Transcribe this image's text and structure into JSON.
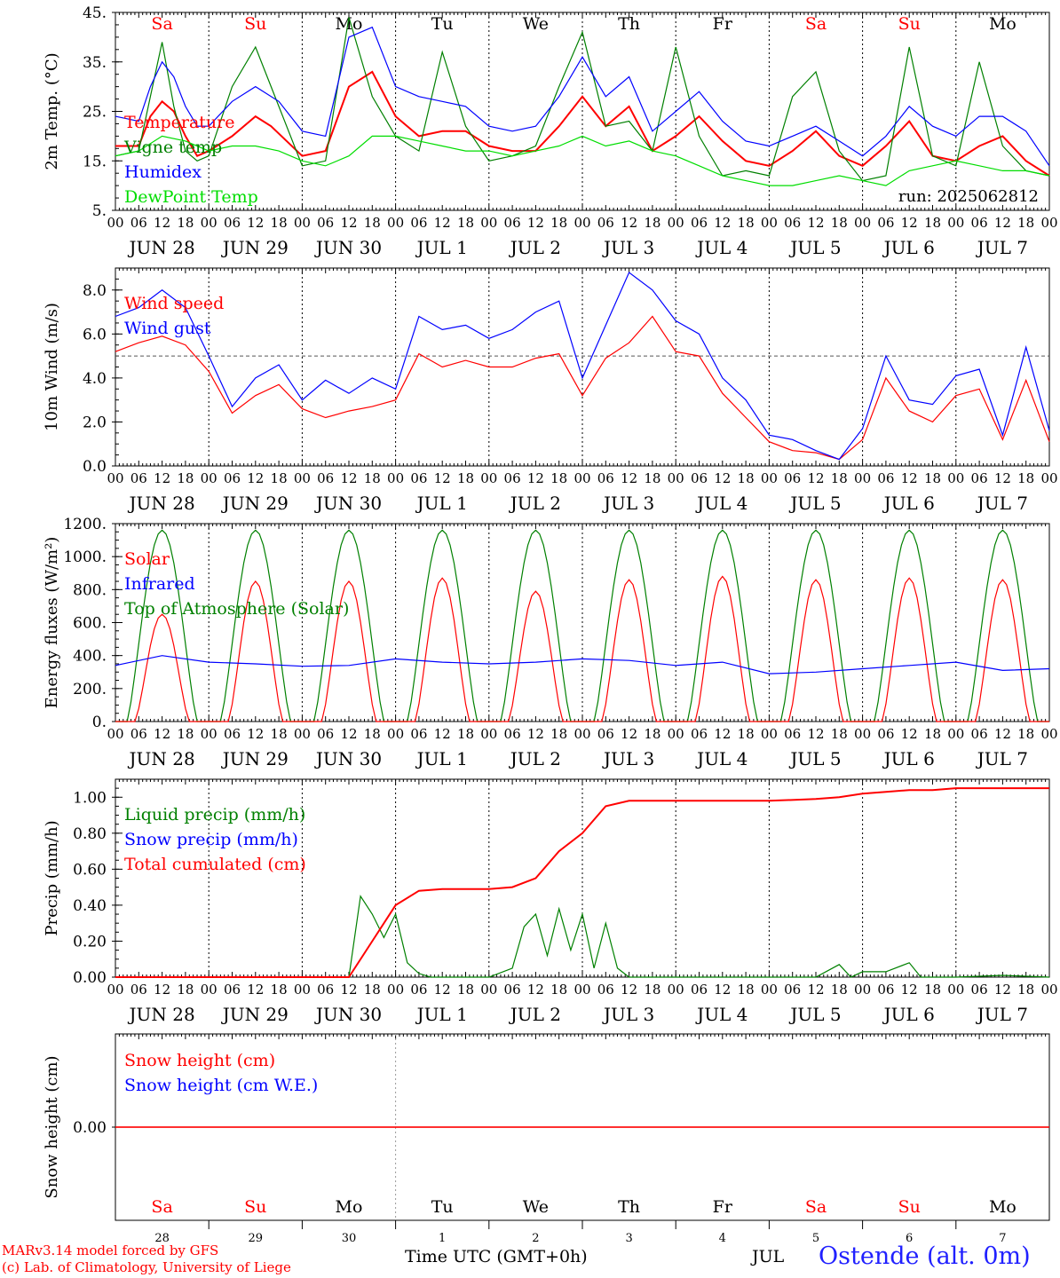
{
  "footer": {
    "credit1": "MARv3.14 model forced by GFS",
    "credit2": "(c) Lab. of Climatology, University of Liege",
    "xtitle": "Time UTC (GMT+0h)",
    "month": "JUL",
    "station": "Ostende (alt. 0m)"
  },
  "colors": {
    "red": "#ff0000",
    "green": "#008000",
    "blue": "#0000ff",
    "lightgreen": "#00dd00"
  },
  "chart_data": {
    "type": "line",
    "x_hours": {
      "start_hour": 0,
      "end_hour": 240,
      "step": 6
    },
    "hour_tick_labels": [
      "00",
      "06",
      "12",
      "18"
    ],
    "date_labels": [
      "JUN 28",
      "JUN 29",
      "JUN 30",
      "JUL  1",
      "JUL  2",
      "JUL  3",
      "JUL  4",
      "JUL  5",
      "JUL  6",
      "JUL  7"
    ],
    "weekdays": [
      "Sa",
      "Su",
      "Mo",
      "Tu",
      "We",
      "Th",
      "Fr",
      "Sa",
      "Su",
      "Mo"
    ],
    "weekend_flags": [
      true,
      true,
      false,
      false,
      false,
      false,
      false,
      true,
      true,
      false
    ],
    "bottom_day_numbers": [
      "28",
      "29",
      "30",
      "1",
      "2",
      "3",
      "4",
      "5",
      "6",
      "7"
    ],
    "panels": [
      {
        "id": "temp",
        "ylabel": "2m Temp. (°C)",
        "ylim": [
          5,
          45
        ],
        "yticks": [
          5,
          15,
          25,
          35,
          45
        ],
        "ytick_labels": [
          "5.",
          "15.",
          "25.",
          "35.",
          "45."
        ],
        "annotation": "run: 2025062812",
        "legend": [
          "Temperature",
          "Vigne temp",
          "Humidex",
          "DewPoint Temp"
        ],
        "series": [
          {
            "name": "Temperature",
            "color": "red",
            "x": [
              0,
              6,
              9,
              12,
              15,
              18,
              21,
              24,
              30,
              36,
              40,
              48,
              54,
              60,
              66,
              72,
              78,
              84,
              90,
              96,
              102,
              108,
              114,
              120,
              126,
              132,
              138,
              144,
              150,
              156,
              162,
              168,
              174,
              180,
              186,
              192,
              198,
              204,
              210,
              216,
              222,
              228,
              234,
              240
            ],
            "y": [
              18,
              18,
              24,
              27,
              25,
              20,
              16,
              17,
              20,
              24,
              22,
              16,
              17,
              30,
              33,
              24,
              20,
              21,
              21,
              18,
              17,
              17,
              22,
              28,
              22,
              26,
              17,
              20,
              24,
              19,
              15,
              14,
              17,
              21,
              16,
              14,
              18,
              23,
              16,
              15,
              18,
              20,
              15,
              12
            ]
          },
          {
            "name": "Vigne temp",
            "color": "green",
            "x": [
              0,
              6,
              9,
              12,
              15,
              18,
              21,
              24,
              30,
              36,
              42,
              48,
              54,
              60,
              66,
              72,
              78,
              84,
              90,
              96,
              102,
              108,
              114,
              120,
              126,
              132,
              138,
              144,
              150,
              156,
              162,
              168,
              174,
              180,
              186,
              192,
              198,
              204,
              210,
              216,
              222,
              228,
              234,
              240
            ],
            "y": [
              16,
              17,
              28,
              39,
              26,
              17,
              15,
              16,
              30,
              38,
              26,
              14,
              15,
              44,
              28,
              20,
              17,
              37,
              22,
              15,
              16,
              18,
              30,
              41,
              22,
              23,
              17,
              38,
              20,
              12,
              13,
              12,
              28,
              33,
              17,
              11,
              12,
              38,
              16,
              14,
              35,
              18,
              13,
              12
            ]
          },
          {
            "name": "Humidex",
            "color": "blue",
            "x": [
              0,
              6,
              9,
              12,
              15,
              18,
              21,
              24,
              30,
              36,
              42,
              48,
              54,
              60,
              66,
              72,
              78,
              84,
              90,
              96,
              102,
              108,
              114,
              120,
              126,
              132,
              138,
              144,
              150,
              156,
              162,
              168,
              174,
              180,
              186,
              192,
              198,
              204,
              210,
              216,
              222,
              228,
              234,
              240
            ],
            "y": [
              24,
              23,
              30,
              35,
              32,
              26,
              22,
              22,
              27,
              30,
              27,
              21,
              20,
              40,
              42,
              30,
              28,
              27,
              26,
              22,
              21,
              22,
              28,
              36,
              28,
              32,
              21,
              25,
              29,
              23,
              19,
              18,
              20,
              22,
              19,
              16,
              20,
              26,
              22,
              20,
              24,
              24,
              21,
              14
            ]
          },
          {
            "name": "DewPoint Temp",
            "color": "lightgreen",
            "x": [
              0,
              6,
              12,
              18,
              24,
              30,
              36,
              42,
              48,
              54,
              60,
              66,
              72,
              78,
              84,
              90,
              96,
              102,
              108,
              114,
              120,
              126,
              132,
              138,
              144,
              150,
              156,
              162,
              168,
              174,
              180,
              186,
              192,
              198,
              204,
              210,
              216,
              222,
              228,
              234,
              240
            ],
            "y": [
              16,
              17,
              20,
              19,
              17,
              18,
              18,
              17,
              15,
              14,
              16,
              20,
              20,
              19,
              18,
              17,
              17,
              16,
              17,
              18,
              20,
              18,
              19,
              17,
              16,
              14,
              12,
              11,
              10,
              10,
              11,
              12,
              11,
              10,
              13,
              14,
              15,
              14,
              13,
              13,
              12
            ]
          }
        ]
      },
      {
        "id": "wind",
        "ylabel": "10m Wind (m/s)",
        "ylim": [
          0,
          9
        ],
        "yticks": [
          0,
          2,
          4,
          6,
          8
        ],
        "ytick_labels": [
          "0.0",
          "2.0",
          "4.0",
          "6.0",
          "8.0"
        ],
        "hline": 5,
        "legend": [
          "Wind speed",
          "Wind gust"
        ],
        "series": [
          {
            "name": "Wind speed",
            "color": "red",
            "x": [
              0,
              6,
              12,
              18,
              24,
              30,
              36,
              42,
              48,
              54,
              60,
              66,
              72,
              78,
              84,
              90,
              96,
              102,
              108,
              114,
              120,
              126,
              132,
              138,
              144,
              150,
              156,
              162,
              168,
              174,
              180,
              186,
              192,
              198,
              204,
              210,
              216,
              222,
              228,
              234,
              240
            ],
            "y": [
              5.2,
              5.6,
              5.9,
              5.5,
              4.3,
              2.4,
              3.2,
              3.7,
              2.6,
              2.2,
              2.5,
              2.7,
              3,
              5.1,
              4.5,
              4.8,
              4.5,
              4.5,
              4.9,
              5.1,
              3.2,
              4.9,
              5.6,
              6.8,
              5.2,
              5,
              3.3,
              2.2,
              1.1,
              0.7,
              0.6,
              0.3,
              1.2,
              4,
              2.5,
              2,
              3.2,
              3.5,
              1.2,
              3.9,
              1.1
            ]
          },
          {
            "name": "Wind gust",
            "color": "blue",
            "x": [
              0,
              6,
              12,
              18,
              24,
              30,
              36,
              42,
              48,
              54,
              60,
              66,
              72,
              78,
              84,
              90,
              96,
              102,
              108,
              114,
              120,
              126,
              132,
              138,
              144,
              150,
              156,
              162,
              168,
              174,
              180,
              186,
              192,
              198,
              204,
              210,
              216,
              222,
              228,
              234,
              240
            ],
            "y": [
              6.8,
              7.2,
              8,
              7.2,
              5,
              2.7,
              4,
              4.6,
              3,
              3.9,
              3.3,
              4,
              3.5,
              6.8,
              6.2,
              6.4,
              5.8,
              6.2,
              7,
              7.5,
              4,
              6.4,
              8.8,
              8,
              6.6,
              6,
              4,
              3,
              1.4,
              1.2,
              0.7,
              0.3,
              1.7,
              5,
              3,
              2.8,
              4.1,
              4.4,
              1.4,
              5.4,
              1.6
            ]
          }
        ]
      },
      {
        "id": "energy",
        "ylabel": "Energy fluxes (W/m²)",
        "ylim": [
          0,
          1200
        ],
        "yticks": [
          0,
          200,
          400,
          600,
          800,
          1000,
          1200
        ],
        "ytick_labels": [
          "0.",
          "200.",
          "400.",
          "600.",
          "800.",
          "1000.",
          "1200."
        ],
        "legend": [
          "Solar",
          "Infrared",
          "Top of Atmosphere (Solar)"
        ],
        "solar_peaks": [
          650,
          850,
          850,
          870,
          790,
          860,
          880,
          860,
          870,
          860
        ],
        "toa_peak": 1160,
        "series": [
          {
            "name": "Infrared",
            "color": "blue",
            "x": [
              0,
              12,
              24,
              36,
              48,
              60,
              72,
              84,
              96,
              108,
              120,
              132,
              144,
              156,
              168,
              180,
              192,
              204,
              216,
              228,
              240
            ],
            "y": [
              340,
              400,
              360,
              350,
              335,
              340,
              380,
              360,
              350,
              360,
              380,
              370,
              340,
              360,
              290,
              300,
              320,
              340,
              360,
              310,
              320
            ]
          }
        ]
      },
      {
        "id": "precip",
        "ylabel": "Precip (mm/h)",
        "ylim": [
          0,
          1.1
        ],
        "yticks": [
          0,
          0.2,
          0.4,
          0.6,
          0.8,
          1.0
        ],
        "ytick_labels": [
          "0.00",
          "0.20",
          "0.40",
          "0.60",
          "0.80",
          "1.00"
        ],
        "legend": [
          "Liquid precip (mm/h)",
          "Snow precip (mm/h)",
          "Total cumulated (cm)"
        ],
        "series": [
          {
            "name": "Liquid precip (mm/h)",
            "color": "green",
            "x": [
              0,
              60,
              63,
              66,
              69,
              72,
              75,
              78,
              81,
              84,
              96,
              102,
              105,
              108,
              111,
              114,
              117,
              120,
              123,
              126,
              129,
              132,
              135,
              138,
              180,
              186,
              189,
              192,
              198,
              204,
              207,
              210,
              213,
              216,
              228,
              240
            ],
            "y": [
              0,
              0,
              0.45,
              0.35,
              0.22,
              0.35,
              0.08,
              0.02,
              0,
              0,
              0,
              0.05,
              0.28,
              0.35,
              0.12,
              0.38,
              0.15,
              0.35,
              0.05,
              0.3,
              0.05,
              0,
              0,
              0,
              0,
              0.07,
              0,
              0.03,
              0.03,
              0.08,
              0,
              0,
              0,
              0,
              0.01,
              0
            ]
          },
          {
            "name": "Total cumulated (cm)",
            "color": "red",
            "x": [
              0,
              60,
              66,
              72,
              78,
              84,
              96,
              102,
              108,
              114,
              120,
              126,
              132,
              138,
              144,
              168,
              180,
              186,
              192,
              198,
              204,
              210,
              216,
              228,
              240
            ],
            "y": [
              0,
              0,
              0.2,
              0.4,
              0.48,
              0.49,
              0.49,
              0.5,
              0.55,
              0.7,
              0.8,
              0.95,
              0.98,
              0.98,
              0.98,
              0.98,
              0.99,
              1.0,
              1.02,
              1.03,
              1.04,
              1.04,
              1.05,
              1.05,
              1.05
            ]
          }
        ]
      },
      {
        "id": "snow",
        "ylabel": "Snow height (cm)",
        "yticks": [
          0
        ],
        "ytick_labels": [
          "0.00"
        ],
        "legend": [
          "Snow height (cm)",
          "Snow height (cm W.E.)"
        ],
        "series": [
          {
            "name": "Snow height (cm)",
            "color": "red",
            "x": [
              0,
              240
            ],
            "y": [
              0,
              0
            ]
          }
        ]
      }
    ]
  }
}
